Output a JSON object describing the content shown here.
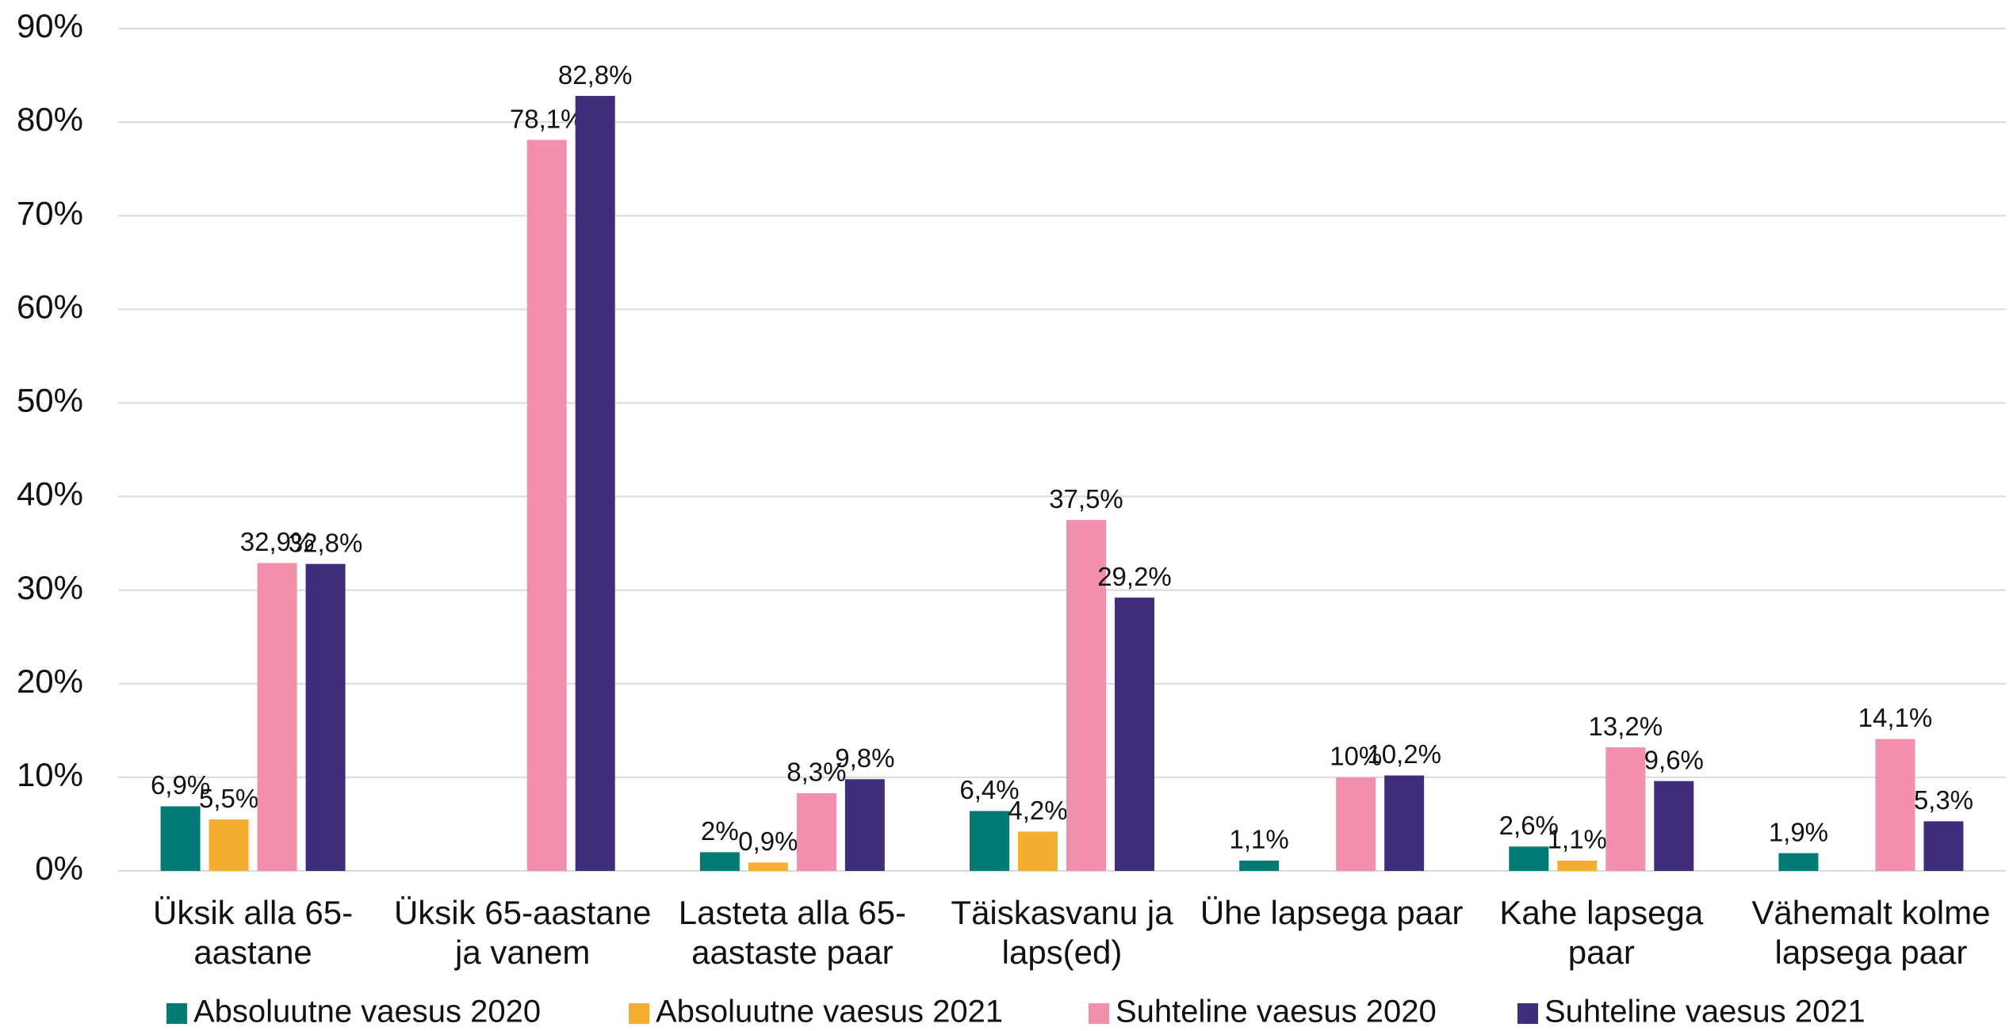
{
  "chart_data": {
    "type": "bar",
    "categories": [
      "Üksik alla 65-\naastane",
      "Üksik 65-aastane\nja vanem",
      "Lasteta alla 65-\naastaste paar",
      "Täiskasvanu ja\nlaps(ed)",
      "Ühe lapsega paar",
      "Kahe lapsega\npaar",
      "Vähemalt kolme\nlapsega paar"
    ],
    "series": [
      {
        "name": "Absoluutne vaesus 2020",
        "color": "#007a73",
        "values": [
          6.9,
          null,
          2,
          6.4,
          1.1,
          2.6,
          1.9
        ],
        "value_labels": [
          "6,9%",
          null,
          "2%",
          "6,4%",
          "1,1%",
          "2,6%",
          "1,9%"
        ]
      },
      {
        "name": "Absoluutne vaesus 2021",
        "color": "#f5ae2f",
        "values": [
          5.5,
          null,
          0.9,
          4.2,
          null,
          1.1,
          null
        ],
        "value_labels": [
          "5,5%",
          null,
          "0,9%",
          "4,2%",
          null,
          "1,1%",
          null
        ]
      },
      {
        "name": "Suhteline vaesus 2020",
        "color": "#f28fab",
        "values": [
          32.9,
          78.1,
          8.3,
          37.5,
          10,
          13.2,
          14.1
        ],
        "value_labels": [
          "32,9%",
          "78,1%",
          "8,3%",
          "37,5%",
          "10%",
          "13,2%",
          "14,1%"
        ]
      },
      {
        "name": "Suhteline vaesus 2021",
        "color": "#3f2d7c",
        "values": [
          32.8,
          82.8,
          9.8,
          29.2,
          10.2,
          9.6,
          5.3
        ],
        "value_labels": [
          "32,8%",
          "82,8%",
          "9,8%",
          "29,2%",
          "10,2%",
          "9,6%",
          "5,3%"
        ]
      }
    ],
    "ylim": [
      0,
      90
    ],
    "yticks": [
      {
        "value": 0,
        "label": "0%"
      },
      {
        "value": 10,
        "label": "10%"
      },
      {
        "value": 20,
        "label": "20%"
      },
      {
        "value": 30,
        "label": "30%"
      },
      {
        "value": 40,
        "label": "40%"
      },
      {
        "value": 50,
        "label": "50%"
      },
      {
        "value": 60,
        "label": "60%"
      },
      {
        "value": 70,
        "label": "70%"
      },
      {
        "value": 80,
        "label": "80%"
      },
      {
        "value": 90,
        "label": "90%"
      }
    ],
    "grid": true,
    "legend": "bottom"
  }
}
